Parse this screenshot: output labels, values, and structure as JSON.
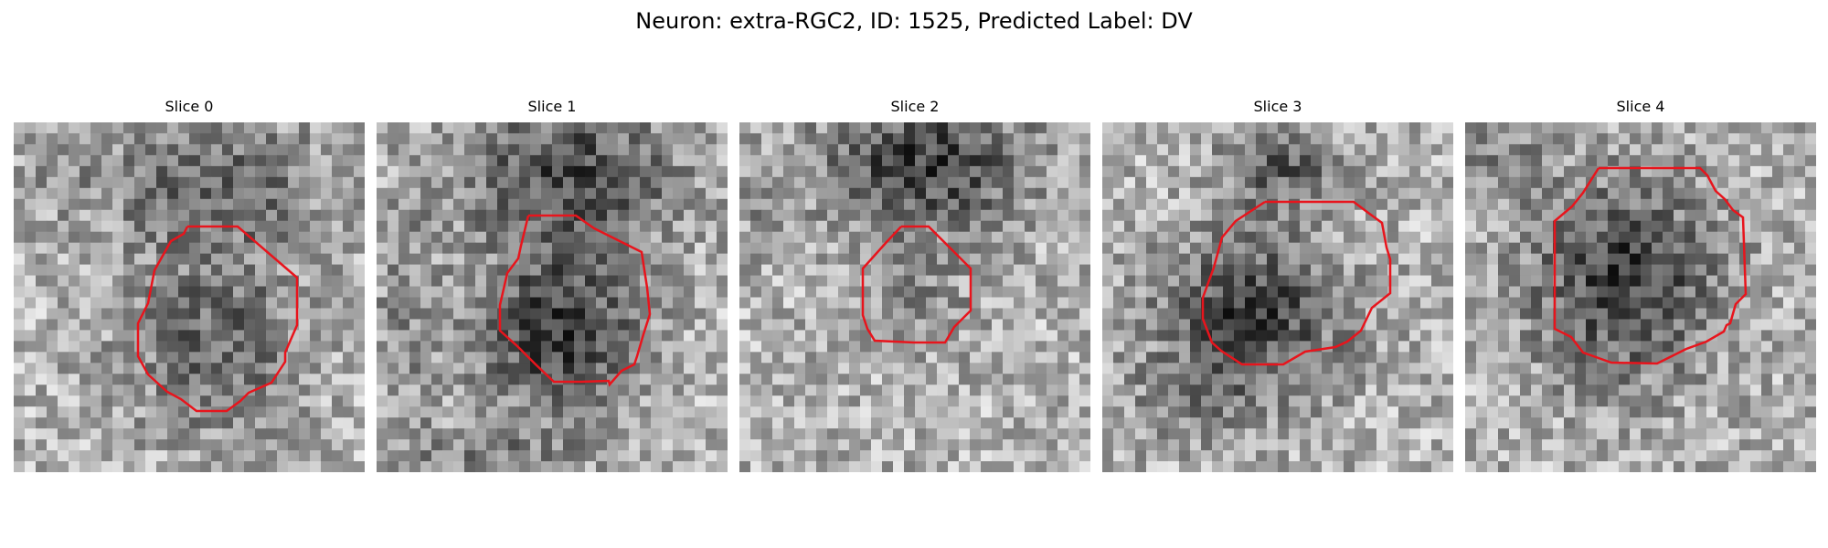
{
  "figure": {
    "title": "Neuron: extra-RGC2, ID: 1525, Predicted Label: DV"
  },
  "colors": {
    "outline": "#e8141c",
    "background": "#ffffff"
  },
  "panels": [
    {
      "title": "Slice 0"
    },
    {
      "title": "Slice 1"
    },
    {
      "title": "Slice 2"
    },
    {
      "title": "Slice 3"
    },
    {
      "title": "Slice 4"
    }
  ]
}
